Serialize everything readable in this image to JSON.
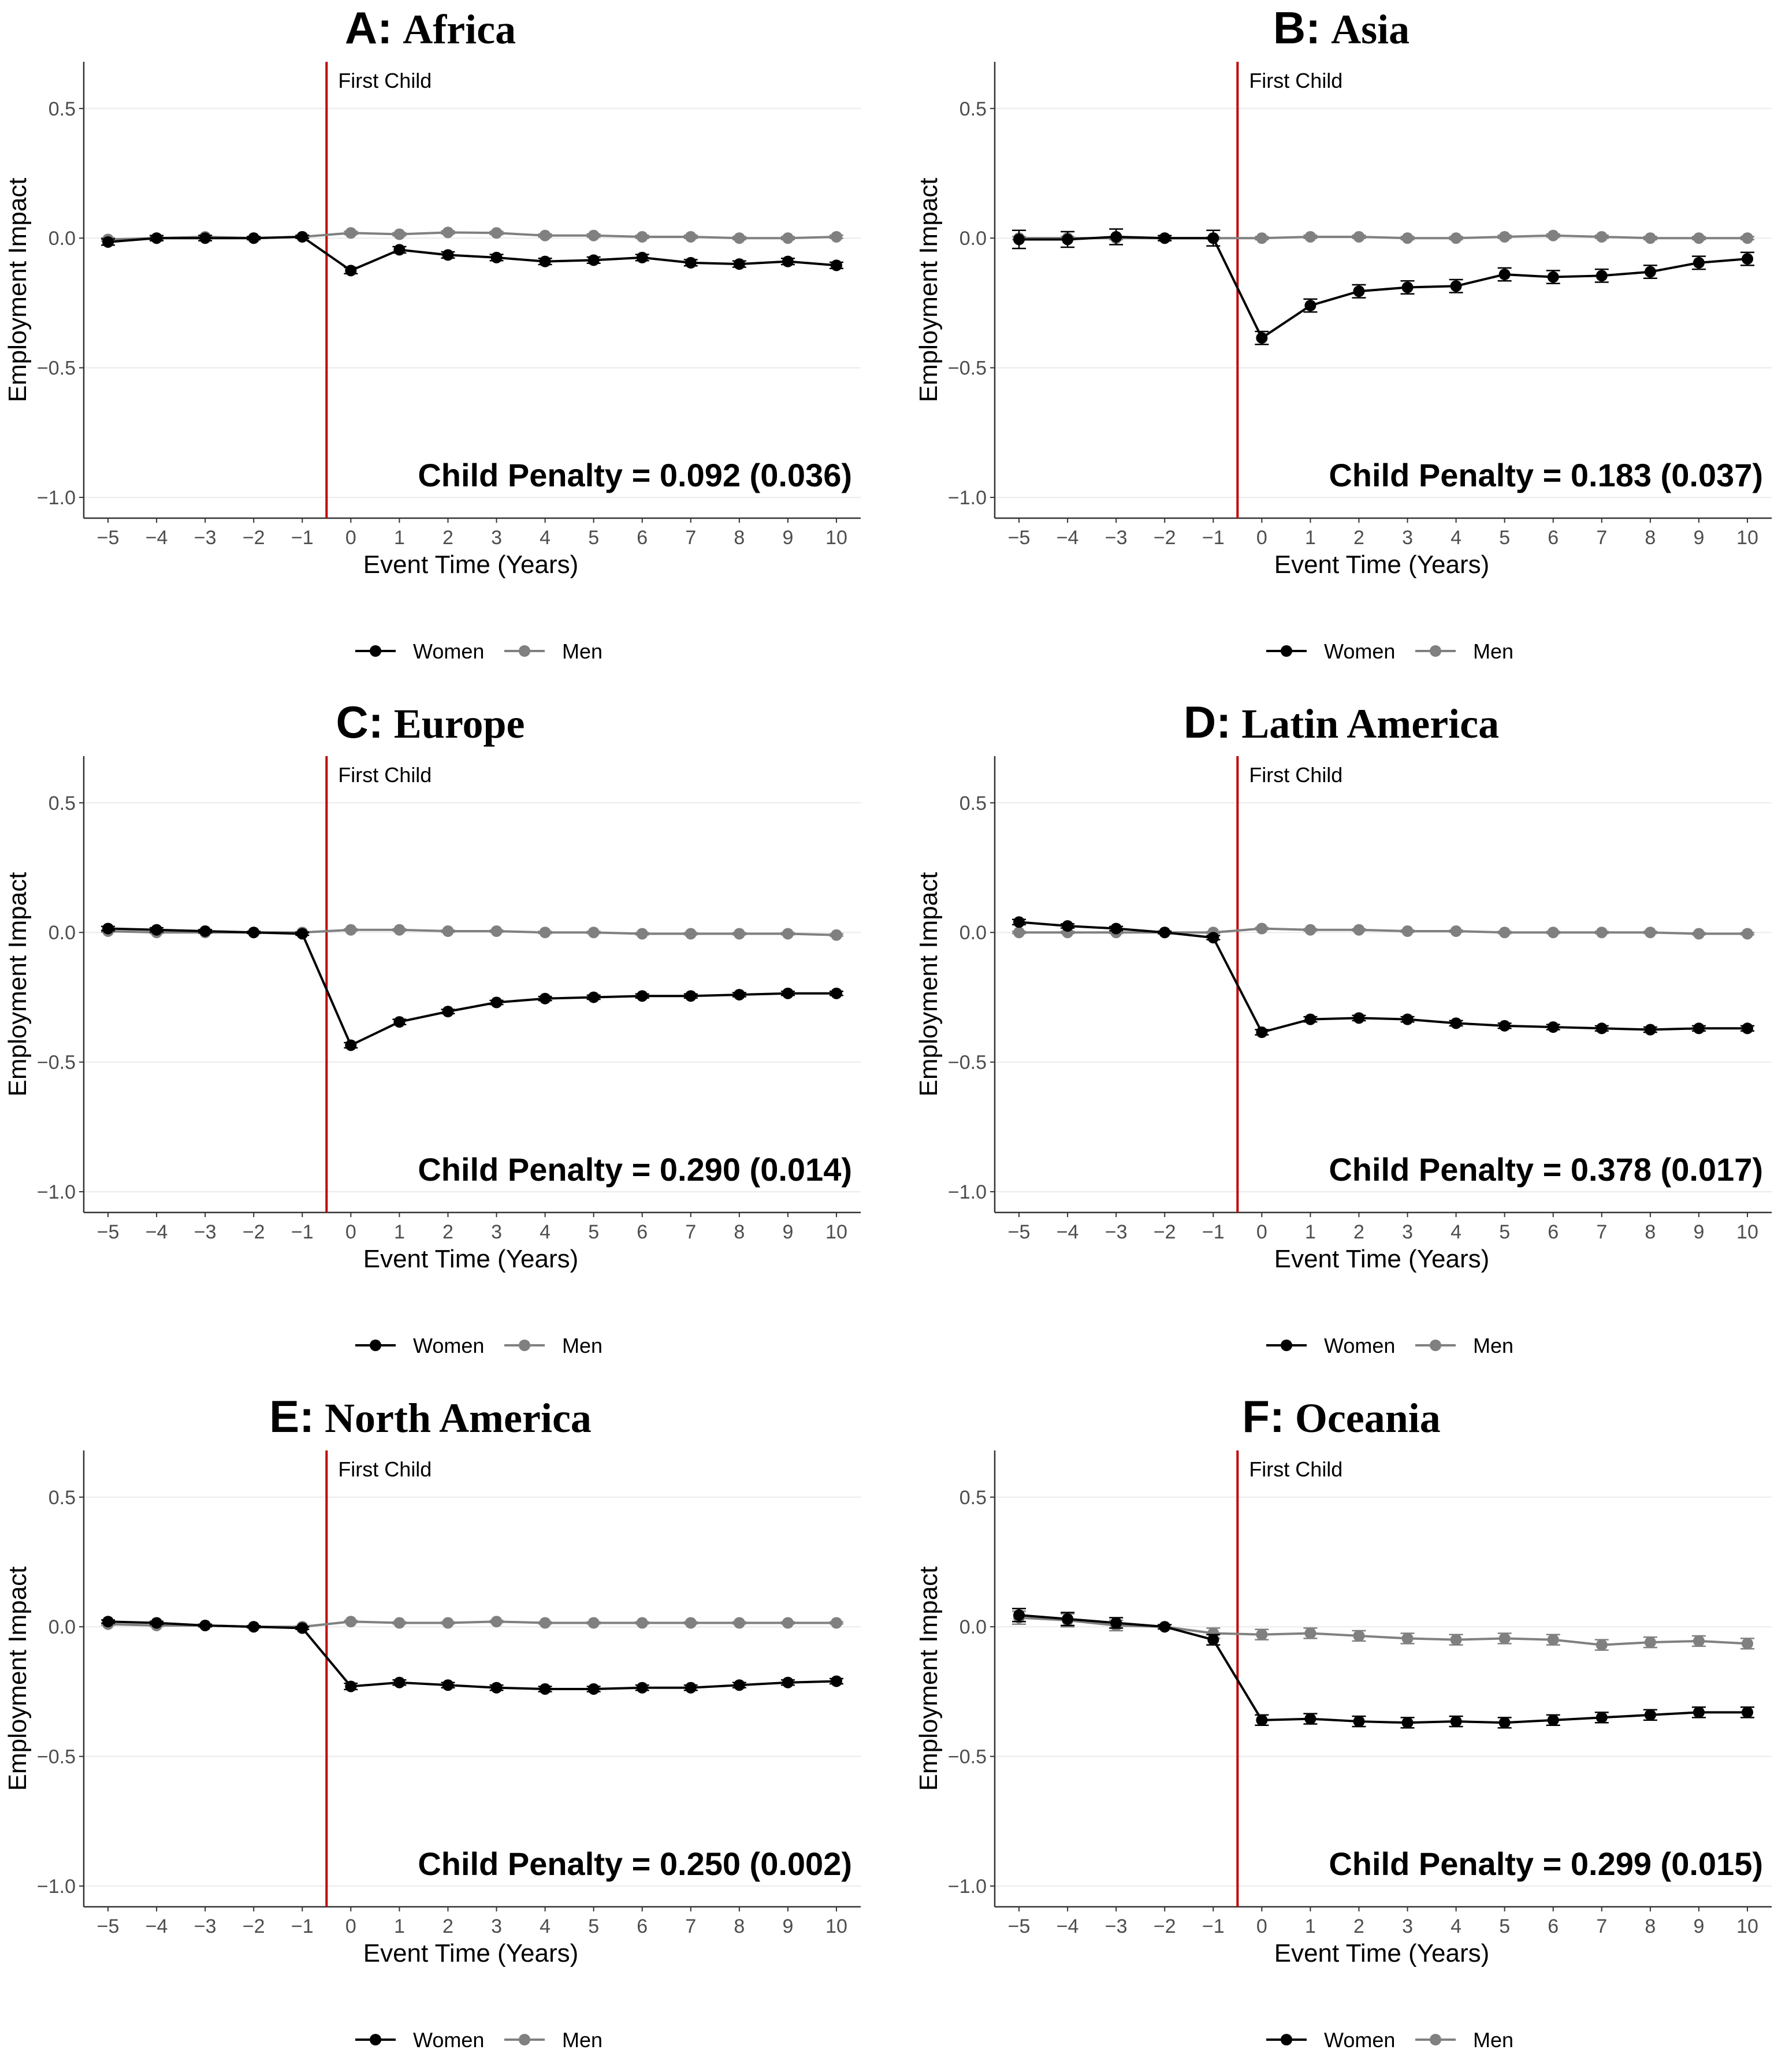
{
  "colors": {
    "women": "#000000",
    "men": "#808080",
    "event_line": "#c00000",
    "grid": "#ebebeb"
  },
  "chart_data": [
    {
      "type": "line",
      "title_letter": "A:",
      "title_region": "Africa",
      "xlabel": "Event Time (Years)",
      "ylabel": "Employment Impact",
      "x": [
        -5,
        -4,
        -3,
        -2,
        -1,
        0,
        1,
        2,
        3,
        4,
        5,
        6,
        7,
        8,
        9,
        10
      ],
      "x_tick_labels": [
        "−5",
        "−4",
        "−3",
        "−2",
        "−1",
        "0",
        "1",
        "2",
        "3",
        "4",
        "5",
        "6",
        "7",
        "8",
        "9",
        "10"
      ],
      "ylim": [
        -1.08,
        0.68
      ],
      "y_ticks": [
        0.5,
        0.0,
        -0.5,
        -1.0
      ],
      "y_tick_labels": [
        "0.5",
        "0.0",
        "−0.5",
        "−1.0"
      ],
      "event_label": "First Child",
      "penalty_text": "Child Penalty = 0.092 (0.036)",
      "legend": {
        "position": "bottom",
        "women_label": "Women",
        "men_label": "Men"
      },
      "series": [
        {
          "name": "Women",
          "values": [
            -0.015,
            0.0,
            0.0,
            0.0,
            0.005,
            -0.125,
            -0.045,
            -0.065,
            -0.075,
            -0.09,
            -0.085,
            -0.075,
            -0.095,
            -0.1,
            -0.09,
            -0.105
          ],
          "err": [
            0.012,
            0.01,
            0.01,
            0.006,
            0.006,
            0.012,
            0.012,
            0.012,
            0.012,
            0.012,
            0.012,
            0.012,
            0.012,
            0.012,
            0.012,
            0.012
          ]
        },
        {
          "name": "Men",
          "values": [
            -0.005,
            0.0,
            0.005,
            0.0,
            0.005,
            0.02,
            0.015,
            0.022,
            0.02,
            0.01,
            0.01,
            0.005,
            0.005,
            0.0,
            0.0,
            0.005
          ],
          "err": [
            0.006,
            0.006,
            0.006,
            0.004,
            0.004,
            0.006,
            0.006,
            0.006,
            0.006,
            0.006,
            0.006,
            0.006,
            0.006,
            0.006,
            0.006,
            0.006
          ]
        }
      ]
    },
    {
      "type": "line",
      "title_letter": "B:",
      "title_region": "Asia",
      "xlabel": "Event Time (Years)",
      "ylabel": "Employment Impact",
      "x": [
        -5,
        -4,
        -3,
        -2,
        -1,
        0,
        1,
        2,
        3,
        4,
        5,
        6,
        7,
        8,
        9,
        10
      ],
      "x_tick_labels": [
        "−5",
        "−4",
        "−3",
        "−2",
        "−1",
        "0",
        "1",
        "2",
        "3",
        "4",
        "5",
        "6",
        "7",
        "8",
        "9",
        "10"
      ],
      "ylim": [
        -1.08,
        0.68
      ],
      "y_ticks": [
        0.5,
        0.0,
        -0.5,
        -1.0
      ],
      "y_tick_labels": [
        "0.5",
        "0.0",
        "−0.5",
        "−1.0"
      ],
      "event_label": "First Child",
      "penalty_text": "Child Penalty = 0.183 (0.037)",
      "legend": {
        "position": "bottom",
        "women_label": "Women",
        "men_label": "Men"
      },
      "series": [
        {
          "name": "Women",
          "values": [
            -0.005,
            -0.005,
            0.005,
            0.0,
            0.0,
            -0.385,
            -0.26,
            -0.205,
            -0.19,
            -0.185,
            -0.14,
            -0.15,
            -0.145,
            -0.13,
            -0.095,
            -0.08
          ],
          "err": [
            0.035,
            0.03,
            0.03,
            0.01,
            0.03,
            0.025,
            0.025,
            0.025,
            0.025,
            0.025,
            0.025,
            0.025,
            0.025,
            0.025,
            0.025,
            0.025
          ]
        },
        {
          "name": "Men",
          "values": [
            0.0,
            0.0,
            0.0,
            0.0,
            0.0,
            0.0,
            0.005,
            0.005,
            0.0,
            0.0,
            0.005,
            0.01,
            0.005,
            0.0,
            0.0,
            0.0
          ],
          "err": [
            0.006,
            0.006,
            0.006,
            0.004,
            0.004,
            0.006,
            0.006,
            0.006,
            0.006,
            0.006,
            0.006,
            0.006,
            0.006,
            0.006,
            0.006,
            0.006
          ]
        }
      ]
    },
    {
      "type": "line",
      "title_letter": "C:",
      "title_region": "Europe",
      "xlabel": "Event Time (Years)",
      "ylabel": "Employment Impact",
      "x": [
        -5,
        -4,
        -3,
        -2,
        -1,
        0,
        1,
        2,
        3,
        4,
        5,
        6,
        7,
        8,
        9,
        10
      ],
      "x_tick_labels": [
        "−5",
        "−4",
        "−3",
        "−2",
        "−1",
        "0",
        "1",
        "2",
        "3",
        "4",
        "5",
        "6",
        "7",
        "8",
        "9",
        "10"
      ],
      "ylim": [
        -1.08,
        0.68
      ],
      "y_ticks": [
        0.5,
        0.0,
        -0.5,
        -1.0
      ],
      "y_tick_labels": [
        "0.5",
        "0.0",
        "−0.5",
        "−1.0"
      ],
      "event_label": "First Child",
      "penalty_text": "Child Penalty = 0.290 (0.014)",
      "legend": {
        "position": "bottom",
        "women_label": "Women",
        "men_label": "Men"
      },
      "series": [
        {
          "name": "Women",
          "values": [
            0.015,
            0.01,
            0.005,
            0.0,
            -0.005,
            -0.435,
            -0.345,
            -0.305,
            -0.27,
            -0.255,
            -0.25,
            -0.245,
            -0.245,
            -0.24,
            -0.235,
            -0.235
          ],
          "err": [
            0.008,
            0.008,
            0.006,
            0.004,
            0.006,
            0.01,
            0.01,
            0.008,
            0.008,
            0.008,
            0.008,
            0.008,
            0.008,
            0.008,
            0.008,
            0.008
          ]
        },
        {
          "name": "Men",
          "values": [
            0.005,
            0.0,
            0.0,
            0.0,
            0.0,
            0.01,
            0.01,
            0.005,
            0.005,
            0.0,
            0.0,
            -0.005,
            -0.005,
            -0.005,
            -0.005,
            -0.01
          ],
          "err": [
            0.004,
            0.004,
            0.004,
            0.003,
            0.003,
            0.004,
            0.004,
            0.004,
            0.004,
            0.004,
            0.004,
            0.004,
            0.004,
            0.004,
            0.004,
            0.004
          ]
        }
      ]
    },
    {
      "type": "line",
      "title_letter": "D:",
      "title_region": "Latin America",
      "xlabel": "Event Time (Years)",
      "ylabel": "Employment Impact",
      "x": [
        -5,
        -4,
        -3,
        -2,
        -1,
        0,
        1,
        2,
        3,
        4,
        5,
        6,
        7,
        8,
        9,
        10
      ],
      "x_tick_labels": [
        "−5",
        "−4",
        "−3",
        "−2",
        "−1",
        "0",
        "1",
        "2",
        "3",
        "4",
        "5",
        "6",
        "7",
        "8",
        "9",
        "10"
      ],
      "ylim": [
        -1.08,
        0.68
      ],
      "y_ticks": [
        0.5,
        0.0,
        -0.5,
        -1.0
      ],
      "y_tick_labels": [
        "0.5",
        "0.0",
        "−0.5",
        "−1.0"
      ],
      "event_label": "First Child",
      "penalty_text": "Child Penalty = 0.378 (0.017)",
      "legend": {
        "position": "bottom",
        "women_label": "Women",
        "men_label": "Men"
      },
      "series": [
        {
          "name": "Women",
          "values": [
            0.04,
            0.025,
            0.015,
            0.0,
            -0.02,
            -0.385,
            -0.335,
            -0.33,
            -0.335,
            -0.35,
            -0.36,
            -0.365,
            -0.37,
            -0.375,
            -0.37,
            -0.37
          ],
          "err": [
            0.01,
            0.008,
            0.008,
            0.005,
            0.008,
            0.01,
            0.01,
            0.01,
            0.01,
            0.01,
            0.01,
            0.01,
            0.01,
            0.01,
            0.01,
            0.01
          ]
        },
        {
          "name": "Men",
          "values": [
            0.0,
            0.0,
            0.0,
            0.0,
            0.0,
            0.015,
            0.01,
            0.01,
            0.005,
            0.005,
            0.0,
            0.0,
            0.0,
            0.0,
            -0.005,
            -0.005
          ],
          "err": [
            0.004,
            0.004,
            0.004,
            0.003,
            0.003,
            0.004,
            0.004,
            0.004,
            0.004,
            0.004,
            0.004,
            0.004,
            0.004,
            0.004,
            0.004,
            0.004
          ]
        }
      ]
    },
    {
      "type": "line",
      "title_letter": "E:",
      "title_region": "North America",
      "xlabel": "Event Time (Years)",
      "ylabel": "Employment Impact",
      "x": [
        -5,
        -4,
        -3,
        -2,
        -1,
        0,
        1,
        2,
        3,
        4,
        5,
        6,
        7,
        8,
        9,
        10
      ],
      "x_tick_labels": [
        "−5",
        "−4",
        "−3",
        "−2",
        "−1",
        "0",
        "1",
        "2",
        "3",
        "4",
        "5",
        "6",
        "7",
        "8",
        "9",
        "10"
      ],
      "ylim": [
        -1.08,
        0.68
      ],
      "y_ticks": [
        0.5,
        0.0,
        -0.5,
        -1.0
      ],
      "y_tick_labels": [
        "0.5",
        "0.0",
        "−0.5",
        "−1.0"
      ],
      "event_label": "First Child",
      "penalty_text": "Child Penalty = 0.250 (0.002)",
      "legend": {
        "position": "bottom",
        "women_label": "Women",
        "men_label": "Men"
      },
      "series": [
        {
          "name": "Women",
          "values": [
            0.02,
            0.015,
            0.005,
            0.0,
            -0.005,
            -0.23,
            -0.215,
            -0.225,
            -0.235,
            -0.24,
            -0.24,
            -0.235,
            -0.235,
            -0.225,
            -0.215,
            -0.21
          ],
          "err": [
            0.006,
            0.006,
            0.005,
            0.004,
            0.005,
            0.012,
            0.01,
            0.01,
            0.01,
            0.01,
            0.01,
            0.01,
            0.01,
            0.01,
            0.01,
            0.01
          ]
        },
        {
          "name": "Men",
          "values": [
            0.01,
            0.005,
            0.005,
            0.0,
            0.0,
            0.02,
            0.015,
            0.015,
            0.02,
            0.015,
            0.015,
            0.015,
            0.015,
            0.015,
            0.015,
            0.015
          ],
          "err": [
            0.004,
            0.004,
            0.004,
            0.003,
            0.003,
            0.004,
            0.004,
            0.004,
            0.004,
            0.004,
            0.004,
            0.004,
            0.004,
            0.004,
            0.004,
            0.004
          ]
        }
      ]
    },
    {
      "type": "line",
      "title_letter": "F:",
      "title_region": "Oceania",
      "xlabel": "Event Time (Years)",
      "ylabel": "Employment Impact",
      "x": [
        -5,
        -4,
        -3,
        -2,
        -1,
        0,
        1,
        2,
        3,
        4,
        5,
        6,
        7,
        8,
        9,
        10
      ],
      "x_tick_labels": [
        "−5",
        "−4",
        "−3",
        "−2",
        "−1",
        "0",
        "1",
        "2",
        "3",
        "4",
        "5",
        "6",
        "7",
        "8",
        "9",
        "10"
      ],
      "ylim": [
        -1.08,
        0.68
      ],
      "y_ticks": [
        0.5,
        0.0,
        -0.5,
        -1.0
      ],
      "y_tick_labels": [
        "0.5",
        "0.0",
        "−0.5",
        "−1.0"
      ],
      "event_label": "First Child",
      "penalty_text": "Child Penalty = 0.299 (0.015)",
      "legend": {
        "position": "bottom",
        "women_label": "Women",
        "men_label": "Men"
      },
      "series": [
        {
          "name": "Women",
          "values": [
            0.045,
            0.03,
            0.015,
            0.0,
            -0.05,
            -0.36,
            -0.355,
            -0.365,
            -0.37,
            -0.365,
            -0.37,
            -0.36,
            -0.35,
            -0.34,
            -0.33,
            -0.33
          ],
          "err": [
            0.025,
            0.025,
            0.02,
            0.008,
            0.02,
            0.02,
            0.02,
            0.02,
            0.02,
            0.02,
            0.02,
            0.02,
            0.02,
            0.02,
            0.02,
            0.02
          ]
        },
        {
          "name": "Men",
          "values": [
            0.035,
            0.025,
            0.005,
            0.0,
            -0.025,
            -0.03,
            -0.025,
            -0.035,
            -0.045,
            -0.05,
            -0.045,
            -0.05,
            -0.07,
            -0.06,
            -0.055,
            -0.065
          ],
          "err": [
            0.025,
            0.025,
            0.02,
            0.008,
            0.02,
            0.02,
            0.02,
            0.02,
            0.02,
            0.02,
            0.02,
            0.02,
            0.02,
            0.02,
            0.02,
            0.02
          ]
        }
      ]
    }
  ]
}
